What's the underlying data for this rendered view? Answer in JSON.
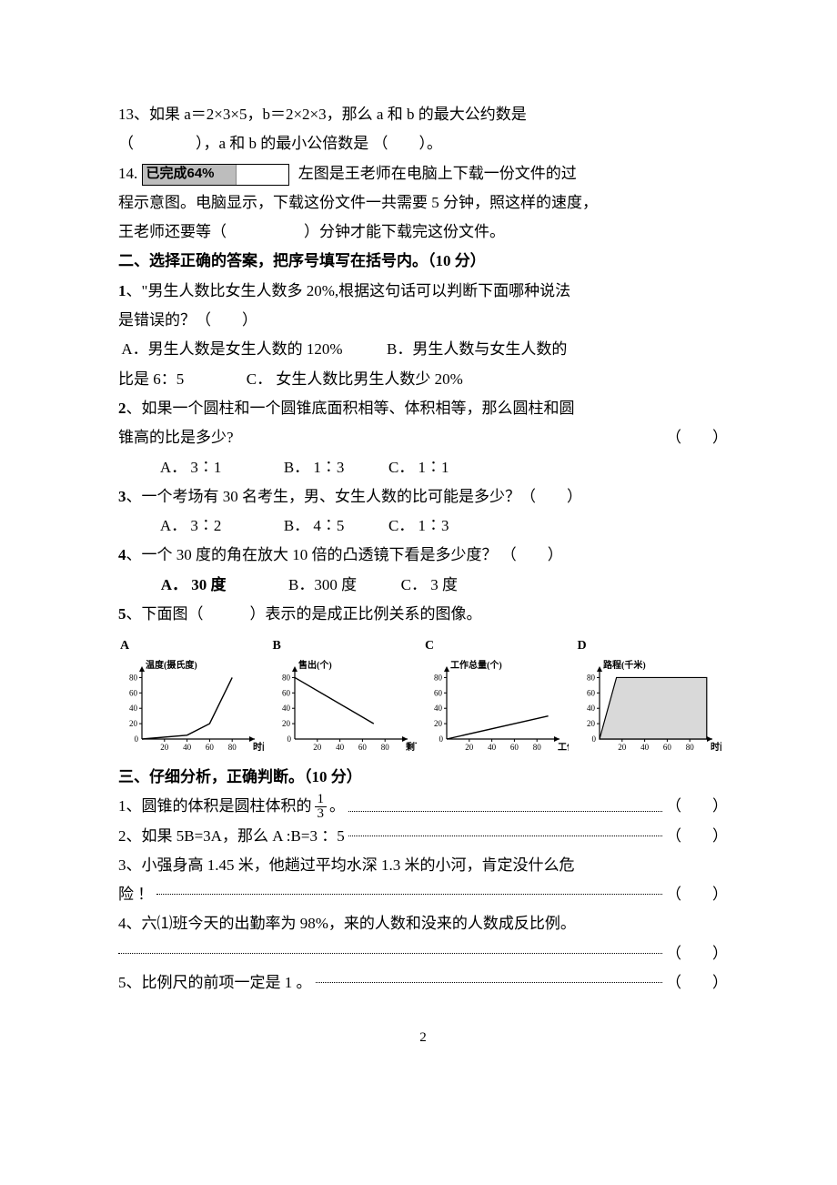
{
  "q13": {
    "text_a": "13、如果 a＝2×3×5，b＝2×2×3，那么 a 和 b 的最大公约数是",
    "text_b": "（　　　　），a 和 b 的最小公倍数是 （　　）。"
  },
  "q14": {
    "lead": "14.",
    "progress_label": "已完成64%",
    "progress_pct": 64,
    "text_a": "左图是王老师在电脑上下载一份文件的过",
    "text_b": "程示意图。电脑显示，下载这份文件一共需要 5 分钟，照这样的速度，",
    "text_c": "王老师还要等（　　　　　）分钟才能下载完这份文件。"
  },
  "sec2": {
    "title": "二、选择正确的答案，把序号填写在括号内。（10 分）"
  },
  "s2q1": {
    "stem_a": "1、\"男生人数比女生人数多 20%,根据这句话可以判断下面哪种说法",
    "stem_b": "是错误的？（　　）",
    "optA": "A．男生人数是女生人数的 120%",
    "optB": "B．男生人数与女生人数的",
    "optB2": "比是 6：5",
    "optC": "C． 女生人数比男生人数少 20%"
  },
  "s2q2": {
    "stem_a": "2、如果一个圆柱和一个圆锥底面积相等、体积相等，那么圆柱和圆",
    "stem_b_left": "锥高的比是多少?",
    "stem_b_right": "（　　）",
    "optA": "A．  3∶1",
    "optB": "B．  1∶3",
    "optC": "C．    1∶1"
  },
  "s2q3": {
    "stem": "3、一个考场有 30 名考生，男、女生人数的比可能是多少？（　　）",
    "optA": "A．  3∶2",
    "optB": "B．  4∶5",
    "optC": "C．    1∶3"
  },
  "s2q4": {
    "stem": "4、一个 30 度的角在放大 10 倍的凸透镜下看是多少度？   （　　）",
    "optA": "A．  30 度",
    "optB": "B．300 度",
    "optC": "C．  3 度",
    "optA_bold": true
  },
  "s2q5": {
    "stem": "5、下面图（　　　）表示的是成正比例关系的图像。"
  },
  "charts": {
    "width": 160,
    "height": 110,
    "margin": {
      "l": 26,
      "r": 10,
      "t": 12,
      "b": 22
    },
    "yticks": [
      0,
      20,
      40,
      60,
      80
    ],
    "xticks": [
      20,
      40,
      60,
      80
    ],
    "tick_fontsize": 9,
    "label_fontsize": 10,
    "axis_color": "#000000",
    "plot_color": "#000000",
    "area_fill": "#d9d9d9",
    "items": [
      {
        "letter": "A",
        "ylabel": "温度(摄氏度)",
        "xlabel": "时间(分)",
        "type": "line",
        "points": [
          [
            0,
            0
          ],
          [
            40,
            5
          ],
          [
            60,
            20
          ],
          [
            80,
            80
          ]
        ]
      },
      {
        "letter": "B",
        "ylabel": "售出(个)",
        "xlabel": "剩下(个)",
        "type": "line",
        "points": [
          [
            0,
            80
          ],
          [
            70,
            20
          ]
        ]
      },
      {
        "letter": "C",
        "ylabel": "工作总量(个)",
        "xlabel": "工作人数(个)",
        "type": "line",
        "points": [
          [
            0,
            0
          ],
          [
            90,
            30
          ]
        ]
      },
      {
        "letter": "D",
        "ylabel": "路程(千米)",
        "xlabel": "时间(时)",
        "type": "area",
        "points": [
          [
            0,
            0
          ],
          [
            15,
            80
          ],
          [
            95,
            80
          ]
        ]
      }
    ]
  },
  "sec3": {
    "title": "三、仔细分析，正确判断。（10 分）"
  },
  "s3q1": {
    "a": "1、圆锥的体积是圆柱体积的",
    "frac_n": "1",
    "frac_d": "3",
    "b": "。",
    "paren": "（　　）"
  },
  "s3q2": {
    "text": "2、如果 5B=3A，那么 A :B=3 ：5",
    "paren": "（　　）"
  },
  "s3q3": {
    "a": "3、小强身高 1.45 米，他趟过平均水深 1.3 米的小河，肯定没什么危",
    "b": "险 ！",
    "paren": "（　　）"
  },
  "s3q4": {
    "a": "4、六⑴班今天的出勤率为 98%，来的人数和没来的人数成反比例。",
    "paren": "（　　）"
  },
  "s3q5": {
    "text": "5、比例尺的前项一定是 1 。",
    "paren": "（　　）"
  },
  "page_number": "2"
}
